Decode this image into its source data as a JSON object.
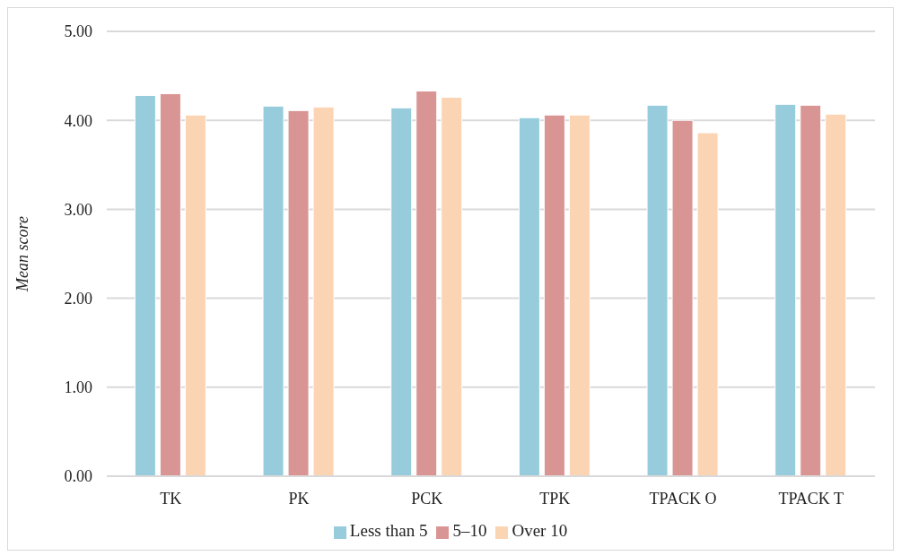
{
  "chart_data": {
    "type": "bar",
    "ylabel": "Mean score",
    "categories": [
      "TK",
      "PK",
      "PCK",
      "TPK",
      "TPACK O",
      "TPACK T"
    ],
    "series": [
      {
        "name": "Less than 5",
        "color": "#96ccdc",
        "values": [
          4.28,
          4.16,
          4.14,
          4.03,
          4.17,
          4.18
        ]
      },
      {
        "name": "5–10",
        "color": "#d99594",
        "values": [
          4.3,
          4.11,
          4.33,
          4.06,
          4.0,
          4.17
        ]
      },
      {
        "name": "Over 10",
        "color": "#fbd4b4",
        "values": [
          4.06,
          4.15,
          4.26,
          4.06,
          3.86,
          4.07
        ]
      }
    ],
    "ylim": [
      0,
      5
    ],
    "yticks": [
      {
        "value": 0,
        "label": "0.00"
      },
      {
        "value": 1,
        "label": "1.00"
      },
      {
        "value": 2,
        "label": "2.00"
      },
      {
        "value": 3,
        "label": "3.00"
      },
      {
        "value": 4,
        "label": "4.00"
      },
      {
        "value": 5,
        "label": "5.00"
      }
    ],
    "grid": "y",
    "legend": "bottom"
  }
}
